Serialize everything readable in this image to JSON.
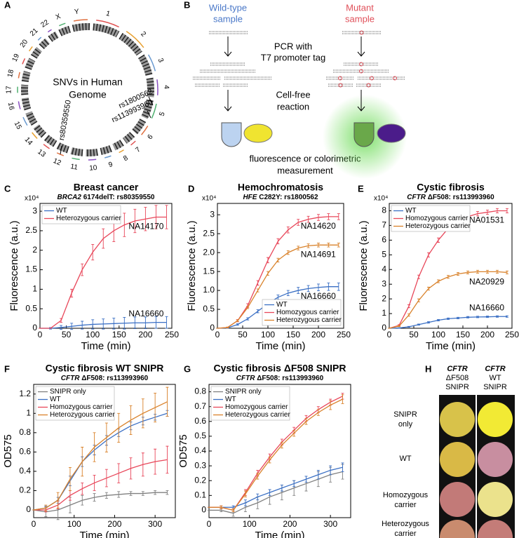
{
  "panel_labels": [
    "A",
    "B",
    "C",
    "D",
    "E",
    "F",
    "G",
    "H"
  ],
  "panel_a": {
    "title_lines": [
      "SNVs in Human",
      "Genome"
    ],
    "chromosomes": [
      "1",
      "2",
      "3",
      "4",
      "5",
      "6",
      "7",
      "8",
      "9",
      "10",
      "11",
      "12",
      "13",
      "14",
      "15",
      "16",
      "17",
      "18",
      "19",
      "20",
      "21",
      "22",
      "X",
      "Y"
    ],
    "snvs": [
      "rs1800562",
      "rs113993960",
      "rs80359550"
    ]
  },
  "panel_b": {
    "wild_type": [
      "Wild-type",
      "sample"
    ],
    "mutant": [
      "Mutant",
      "sample"
    ],
    "pcr": [
      "PCR with",
      "T7 promoter tag"
    ],
    "reaction": [
      "Cell-free",
      "reaction"
    ],
    "measurement": [
      "fluorescence or colorimetric",
      "measurement"
    ]
  },
  "panel_h": {
    "columns": [
      [
        "CFTR",
        "ΔF508",
        "SNIPR"
      ],
      [
        "CFTR",
        "WT",
        "SNIPR"
      ]
    ],
    "rows": [
      [
        "SNIPR",
        "only"
      ],
      [
        "WT"
      ],
      [
        "Homozygous",
        "carrier"
      ],
      [
        "Heterozygous",
        "carrier"
      ]
    ]
  },
  "chart_data": [
    {
      "type": "line",
      "title": "Breast cancer",
      "gene": "BRCA2",
      "subtitle": " 6174delT: rs80359550",
      "x_label": "Time (min)",
      "y_label": "Fluorescence (a.u.)",
      "y_multiplier": "x10⁴",
      "legend": "upper left",
      "x": [
        0,
        20,
        40,
        60,
        80,
        100,
        120,
        140,
        160,
        180,
        200,
        220,
        240
      ],
      "xlim": [
        0,
        250
      ],
      "xticks": [
        0,
        50,
        100,
        150,
        200,
        250
      ],
      "ylim": [
        0,
        3.2
      ],
      "yticks": [
        0,
        0.5,
        1,
        1.5,
        2,
        2.5,
        3
      ],
      "series": [
        {
          "name": "WT",
          "color": "#3a6fc4",
          "label": "NA16660",
          "values": [
            0,
            0,
            0.02,
            0.05,
            0.08,
            0.1,
            0.11,
            0.12,
            0.13,
            0.14,
            0.14,
            0.15,
            0.15
          ],
          "errors": [
            0,
            0.02,
            0.05,
            0.08,
            0.1,
            0.12,
            0.13,
            0.14,
            0.15,
            0.15,
            0.15,
            0.15,
            0.15
          ]
        },
        {
          "name": "Heterozygous carrier",
          "color": "#e8475a",
          "label": "NA14170",
          "values": [
            0,
            0,
            0.2,
            0.9,
            1.5,
            1.95,
            2.3,
            2.5,
            2.65,
            2.75,
            2.8,
            2.85,
            2.85
          ],
          "errors": [
            0,
            0,
            0.05,
            0.1,
            0.15,
            0.2,
            0.25,
            0.28,
            0.3,
            0.3,
            0.3,
            0.3,
            0.3
          ]
        }
      ]
    },
    {
      "type": "line",
      "title": "Hemochromatosis",
      "gene": "HFE",
      "subtitle": " C282Y: rs1800562",
      "x_label": "Time (min)",
      "y_label": "Fluorescence (a.u.)",
      "y_multiplier": "x10⁴",
      "legend": "lower right",
      "x": [
        0,
        20,
        40,
        60,
        80,
        100,
        120,
        140,
        160,
        180,
        200,
        220,
        240
      ],
      "xlim": [
        0,
        250
      ],
      "xticks": [
        0,
        50,
        100,
        150,
        200,
        250
      ],
      "ylim": [
        0,
        3.3
      ],
      "yticks": [
        0,
        0.5,
        {
          "value": 1,
          "label": "1.0"
        },
        1.5,
        {
          "value": 2,
          "label": "2.0"
        },
        2.5,
        3
      ],
      "series": [
        {
          "name": "WT",
          "color": "#3a6fc4",
          "label": "NA16660",
          "values": [
            0,
            0.01,
            0.1,
            0.25,
            0.45,
            0.65,
            0.82,
            0.93,
            1,
            1.05,
            1.08,
            1.1,
            1.1
          ],
          "errors": [
            0,
            0.01,
            0.02,
            0.03,
            0.04,
            0.05,
            0.06,
            0.07,
            0.08,
            0.08,
            0.09,
            0.1,
            0.1
          ]
        },
        {
          "name": "Homozygous carrier",
          "color": "#e8475a",
          "label": "NA14620",
          "values": [
            0,
            0.02,
            0.2,
            0.6,
            1.2,
            1.8,
            2.3,
            2.6,
            2.8,
            2.88,
            2.93,
            2.95,
            2.95
          ],
          "errors": [
            0,
            0.01,
            0.03,
            0.05,
            0.06,
            0.07,
            0.07,
            0.08,
            0.08,
            0.08,
            0.08,
            0.08,
            0.08
          ]
        },
        {
          "name": "Heterozygous carrier",
          "color": "#d9822b",
          "label": "NA14691",
          "values": [
            0,
            0.02,
            0.2,
            0.55,
            1,
            1.45,
            1.8,
            2,
            2.12,
            2.18,
            2.2,
            2.2,
            2.2
          ],
          "errors": [
            0,
            0.01,
            0.02,
            0.03,
            0.04,
            0.05,
            0.05,
            0.05,
            0.05,
            0.05,
            0.05,
            0.05,
            0.05
          ]
        }
      ]
    },
    {
      "type": "line",
      "title": "Cystic fibrosis",
      "gene": "CFTR",
      "subtitle": " ΔF508: rs113993960",
      "x_label": "Time (min)",
      "y_label": "Fluorescence (a.u.)",
      "y_multiplier": "x10⁴",
      "legend": "upper left",
      "x": [
        0,
        20,
        40,
        60,
        80,
        100,
        120,
        140,
        160,
        180,
        200,
        220,
        240
      ],
      "xlim": [
        0,
        250
      ],
      "xticks": [
        0,
        50,
        100,
        150,
        200,
        250
      ],
      "ylim": [
        0,
        8.5
      ],
      "yticks": [
        0,
        1,
        2,
        3,
        4,
        5,
        6,
        7,
        8
      ],
      "series": [
        {
          "name": "WT",
          "color": "#3a6fc4",
          "label": "NA16660",
          "values": [
            0,
            0.02,
            0.1,
            0.25,
            0.4,
            0.55,
            0.65,
            0.7,
            0.75,
            0.77,
            0.78,
            0.8,
            0.8
          ],
          "errors": [
            0,
            0.02,
            0.03,
            0.04,
            0.05,
            0.05,
            0.05,
            0.05,
            0.05,
            0.05,
            0.05,
            0.05,
            0.05
          ]
        },
        {
          "name": "Homozygous carrier",
          "color": "#e8475a",
          "label": "NA01531",
          "values": [
            0,
            0.2,
            1.5,
            3.5,
            5,
            6,
            6.8,
            7.3,
            7.6,
            7.8,
            7.9,
            8,
            8
          ],
          "errors": [
            0,
            0.05,
            0.1,
            0.12,
            0.15,
            0.15,
            0.15,
            0.15,
            0.15,
            0.15,
            0.15,
            0.15,
            0.15
          ]
        },
        {
          "name": "Heterozygous carrier",
          "color": "#d9822b",
          "label": "NA20929",
          "values": [
            0,
            0.15,
            0.9,
            1.9,
            2.7,
            3.2,
            3.5,
            3.7,
            3.8,
            3.85,
            3.85,
            3.85,
            3.8
          ],
          "errors": [
            0,
            0.04,
            0.08,
            0.1,
            0.1,
            0.1,
            0.1,
            0.1,
            0.1,
            0.1,
            0.1,
            0.1,
            0.1
          ]
        }
      ]
    },
    {
      "type": "line",
      "title": "Cystic fibrosis WT SNIPR",
      "gene": "CFTR",
      "subtitle": " ΔF508: rs113993960",
      "x_label": "Time (min)",
      "y_label": "OD575",
      "legend": "upper left",
      "x": [
        0,
        30,
        60,
        90,
        120,
        150,
        180,
        210,
        240,
        270,
        300,
        330
      ],
      "xlim": [
        0,
        350
      ],
      "xticks": [
        0,
        100,
        200,
        300
      ],
      "ylim": [
        -0.08,
        1.3
      ],
      "yticks": [
        0,
        0.2,
        0.4,
        0.6,
        0.8,
        1,
        1.2
      ],
      "series": [
        {
          "name": "SNIPR only",
          "color": "#808080",
          "values": [
            0,
            -0.02,
            0,
            0.05,
            0.1,
            0.13,
            0.15,
            0.16,
            0.17,
            0.17,
            0.18,
            0.18
          ],
          "errors": [
            0,
            0.05,
            0.1,
            0.08,
            0.05,
            0.04,
            0.03,
            0.03,
            0.02,
            0.02,
            0.02,
            0.02
          ]
        },
        {
          "name": "WT",
          "color": "#3a6fc4",
          "values": [
            0,
            0.02,
            0.1,
            0.3,
            0.5,
            0.62,
            0.72,
            0.8,
            0.87,
            0.92,
            0.96,
            1
          ],
          "errors": [
            0,
            0.02,
            0.03,
            0.05,
            0.05,
            0.05,
            0.05,
            0.04,
            0.04,
            0.04,
            0.03,
            0.03
          ]
        },
        {
          "name": "Homozygous carrier",
          "color": "#e8475a",
          "values": [
            0,
            0,
            0.05,
            0.15,
            0.22,
            0.28,
            0.33,
            0.38,
            0.43,
            0.47,
            0.5,
            0.52
          ],
          "errors": [
            0,
            0.02,
            0.04,
            0.05,
            0.06,
            0.08,
            0.09,
            0.1,
            0.11,
            0.12,
            0.13,
            0.14
          ]
        },
        {
          "name": "Heterozygous carrier",
          "color": "#d9822b",
          "values": [
            0,
            0.02,
            0.1,
            0.32,
            0.5,
            0.65,
            0.75,
            0.85,
            0.93,
            1,
            1.06,
            1.12
          ],
          "errors": [
            0,
            0.03,
            0.08,
            0.12,
            0.15,
            0.15,
            0.15,
            0.15,
            0.15,
            0.15,
            0.15,
            0.15
          ]
        }
      ]
    },
    {
      "type": "line",
      "title": "Cystic fibrosis ΔF508 SNIPR",
      "gene": "CFTR",
      "subtitle": " ΔF508: rs113993960",
      "x_label": "Time (min)",
      "y_label": "OD575",
      "legend": "upper left",
      "x": [
        0,
        30,
        60,
        90,
        120,
        150,
        180,
        210,
        240,
        270,
        300,
        330
      ],
      "xlim": [
        0,
        350
      ],
      "xticks": [
        0,
        100,
        200,
        300
      ],
      "ylim": [
        -0.05,
        0.85
      ],
      "yticks": [
        0,
        0.1,
        0.2,
        0.3,
        0.4,
        0.5,
        0.6,
        0.7,
        0.8
      ],
      "series": [
        {
          "name": "SNIPR only",
          "color": "#808080",
          "values": [
            0,
            0,
            -0.02,
            0.02,
            0.05,
            0.09,
            0.12,
            0.15,
            0.18,
            0.21,
            0.24,
            0.26
          ],
          "errors": [
            0,
            0.01,
            0.02,
            0.03,
            0.04,
            0.05,
            0.05,
            0.05,
            0.05,
            0.05,
            0.05,
            0.05
          ]
        },
        {
          "name": "WT",
          "color": "#3a6fc4",
          "values": [
            0.02,
            0.02,
            0.02,
            0.05,
            0.09,
            0.12,
            0.15,
            0.18,
            0.21,
            0.24,
            0.27,
            0.29
          ],
          "errors": [
            0,
            0.01,
            0.01,
            0.02,
            0.02,
            0.02,
            0.02,
            0.02,
            0.02,
            0.03,
            0.03,
            0.03
          ]
        },
        {
          "name": "Homozygous carrier",
          "color": "#e8475a",
          "values": [
            0.02,
            0.02,
            0,
            0.12,
            0.25,
            0.36,
            0.46,
            0.54,
            0.62,
            0.68,
            0.73,
            0.77
          ],
          "errors": [
            0,
            0.01,
            0.01,
            0.02,
            0.02,
            0.02,
            0.02,
            0.02,
            0.02,
            0.02,
            0.02,
            0.02
          ]
        },
        {
          "name": "Heterozygous carrier",
          "color": "#d9822b",
          "values": [
            0.02,
            0.02,
            0,
            0.11,
            0.23,
            0.34,
            0.44,
            0.52,
            0.6,
            0.66,
            0.71,
            0.75
          ],
          "errors": [
            0,
            0.01,
            0.01,
            0.02,
            0.02,
            0.02,
            0.02,
            0.02,
            0.02,
            0.02,
            0.03,
            0.03
          ]
        }
      ]
    }
  ]
}
